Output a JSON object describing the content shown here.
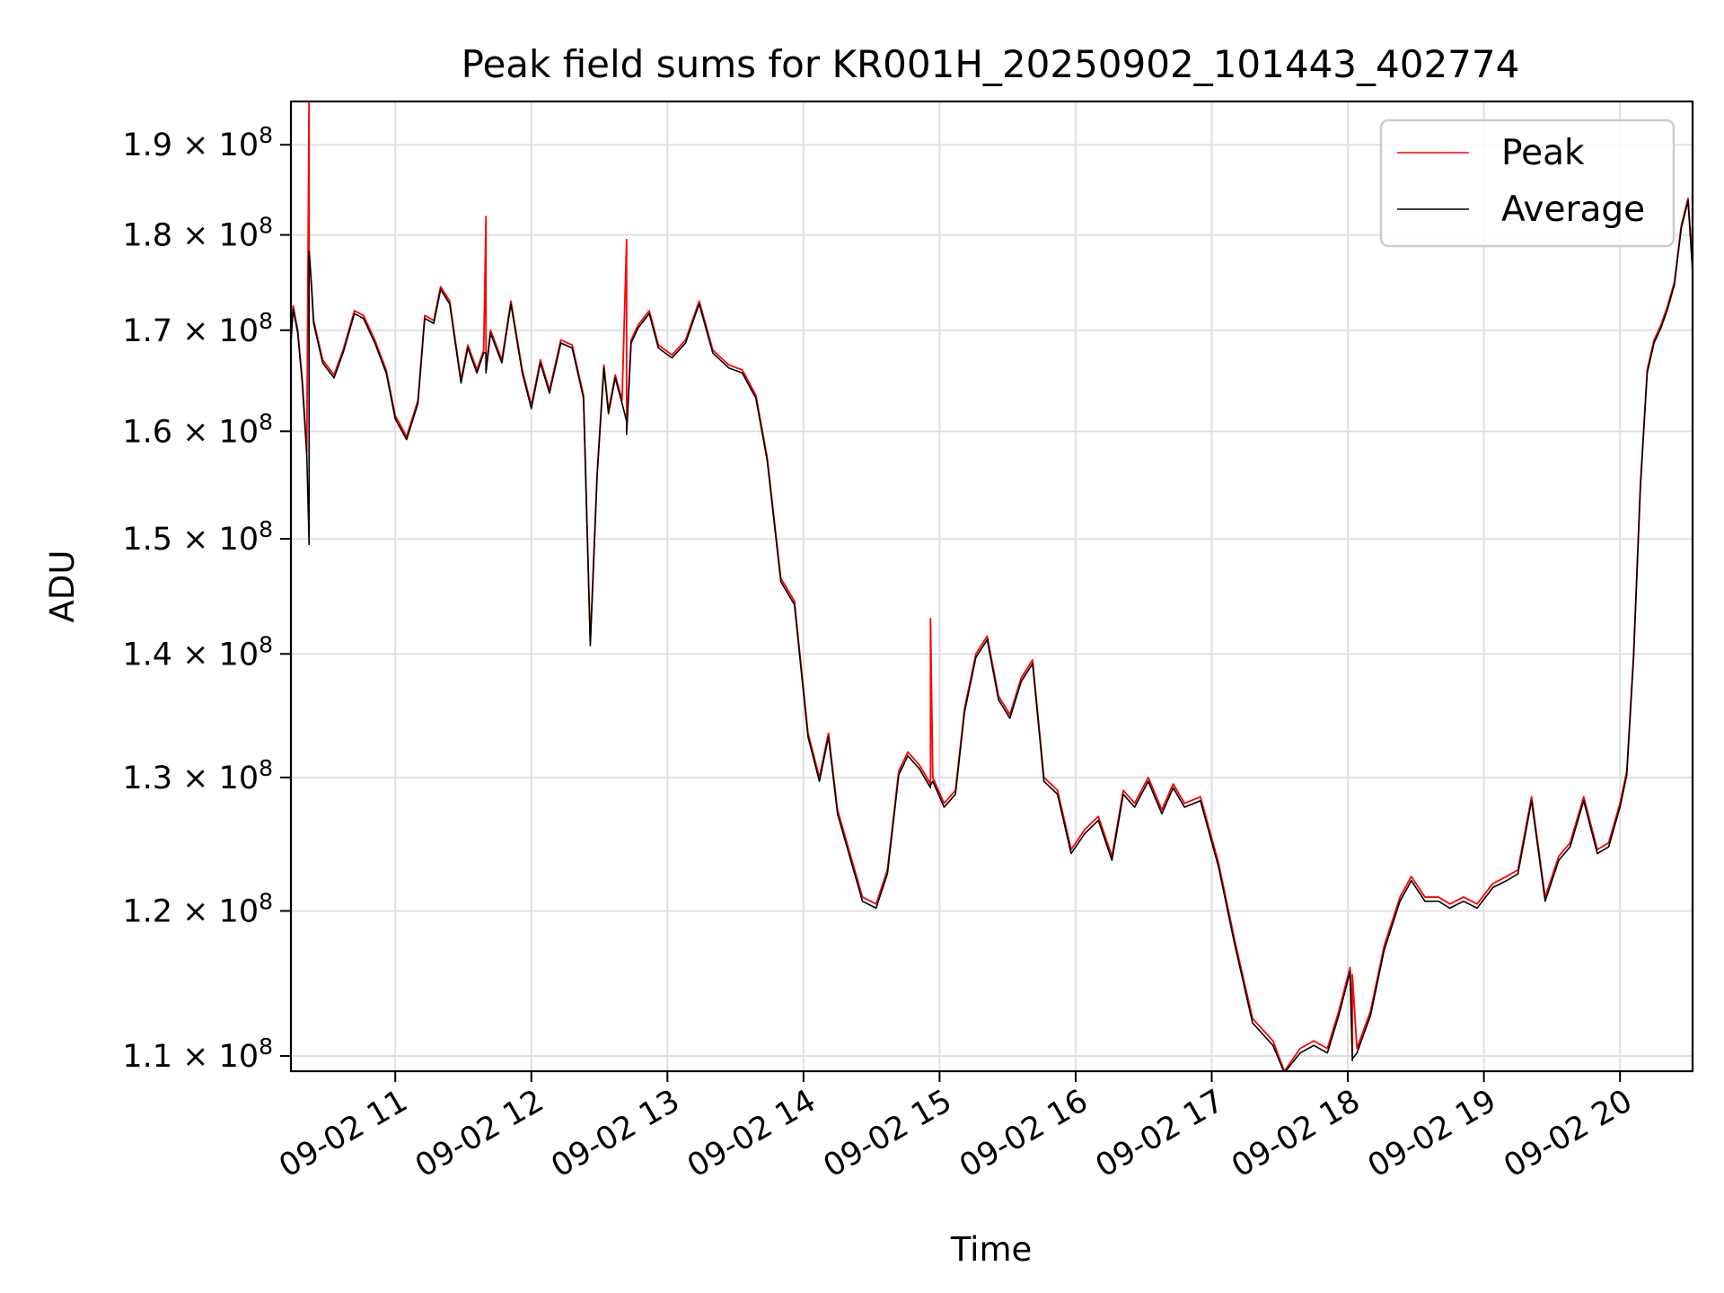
{
  "chart_data": {
    "type": "line",
    "title": "Peak field sums for KR001H_20250902_101443_402774",
    "xlabel": "Time",
    "ylabel": "ADU",
    "xlim": [
      "09-02 10:14",
      "09-02 20:32"
    ],
    "ylim": [
      109000000,
      195000000
    ],
    "y_scale": "log",
    "grid": true,
    "legend_position": "top-right",
    "x_tick_labels": [
      "09-02 11",
      "09-02 12",
      "09-02 13",
      "09-02 14",
      "09-02 15",
      "09-02 16",
      "09-02 17",
      "09-02 18",
      "09-02 19",
      "09-02 20"
    ],
    "x_tick_times": [
      "09-02 11:00",
      "09-02 12:00",
      "09-02 13:00",
      "09-02 14:00",
      "09-02 15:00",
      "09-02 16:00",
      "09-02 17:00",
      "09-02 18:00",
      "09-02 19:00",
      "09-02 20:00"
    ],
    "y_ticks": [
      {
        "value": 110000000,
        "mantissa": "1.1",
        "exp": "8"
      },
      {
        "value": 120000000,
        "mantissa": "1.2",
        "exp": "8"
      },
      {
        "value": 130000000,
        "mantissa": "1.3",
        "exp": "8"
      },
      {
        "value": 140000000,
        "mantissa": "1.4",
        "exp": "8"
      },
      {
        "value": 150000000,
        "mantissa": "1.5",
        "exp": "8"
      },
      {
        "value": 160000000,
        "mantissa": "1.6",
        "exp": "8"
      },
      {
        "value": 170000000,
        "mantissa": "1.7",
        "exp": "8"
      },
      {
        "value": 180000000,
        "mantissa": "1.8",
        "exp": "8"
      },
      {
        "value": 190000000,
        "mantissa": "1.9",
        "exp": "8"
      }
    ],
    "series": [
      {
        "name": "Peak",
        "color": "#ff0000",
        "x": [
          "09-02 10:14",
          "09-02 10:15",
          "09-02 10:17",
          "09-02 10:19",
          "09-02 10:21",
          "09-02 10:22",
          "09-02 10:22",
          "09-02 10:23",
          "09-02 10:24",
          "09-02 10:28",
          "09-02 10:33",
          "09-02 10:37",
          "09-02 10:42",
          "09-02 10:46",
          "09-02 10:51",
          "09-02 10:56",
          "09-02 11:00",
          "09-02 11:05",
          "09-02 11:10",
          "09-02 11:13",
          "09-02 11:17",
          "09-02 11:20",
          "09-02 11:24",
          "09-02 11:29",
          "09-02 11:32",
          "09-02 11:36",
          "09-02 11:39",
          "09-02 11:40",
          "09-02 11:40",
          "09-02 11:42",
          "09-02 11:47",
          "09-02 11:51",
          "09-02 11:56",
          "09-02 12:00",
          "09-02 12:04",
          "09-02 12:08",
          "09-02 12:13",
          "09-02 12:18",
          "09-02 12:23",
          "09-02 12:26",
          "09-02 12:29",
          "09-02 12:32",
          "09-02 12:34",
          "09-02 12:37",
          "09-02 12:40",
          "09-02 12:42",
          "09-02 12:42",
          "09-02 12:44",
          "09-02 12:47",
          "09-02 12:52",
          "09-02 12:56",
          "09-02 13:02",
          "09-02 13:08",
          "09-02 13:14",
          "09-02 13:20",
          "09-02 13:27",
          "09-02 13:33",
          "09-02 13:39",
          "09-02 13:44",
          "09-02 13:50",
          "09-02 13:56",
          "09-02 14:02",
          "09-02 14:07",
          "09-02 14:11",
          "09-02 14:15",
          "09-02 14:20",
          "09-02 14:26",
          "09-02 14:32",
          "09-02 14:37",
          "09-02 14:42",
          "09-02 14:46",
          "09-02 14:51",
          "09-02 14:56",
          "09-02 14:56",
          "09-02 14:57",
          "09-02 15:02",
          "09-02 15:07",
          "09-02 15:11",
          "09-02 15:16",
          "09-02 15:21",
          "09-02 15:26",
          "09-02 15:31",
          "09-02 15:36",
          "09-02 15:41",
          "09-02 15:46",
          "09-02 15:52",
          "09-02 15:58",
          "09-02 16:04",
          "09-02 16:10",
          "09-02 16:16",
          "09-02 16:21",
          "09-02 16:26",
          "09-02 16:32",
          "09-02 16:38",
          "09-02 16:43",
          "09-02 16:48",
          "09-02 16:55",
          "09-02 17:03",
          "09-02 17:10",
          "09-02 17:18",
          "09-02 17:27",
          "09-02 17:32",
          "09-02 17:39",
          "09-02 17:45",
          "09-02 17:51",
          "09-02 17:56",
          "09-02 18:01",
          "09-02 18:02",
          "09-02 18:02",
          "09-02 18:04",
          "09-02 18:10",
          "09-02 18:16",
          "09-02 18:23",
          "09-02 18:28",
          "09-02 18:34",
          "09-02 18:40",
          "09-02 18:45",
          "09-02 18:51",
          "09-02 18:57",
          "09-02 19:04",
          "09-02 19:10",
          "09-02 19:15",
          "09-02 19:21",
          "09-02 19:27",
          "09-02 19:33",
          "09-02 19:38",
          "09-02 19:44",
          "09-02 19:50",
          "09-02 19:55",
          "09-02 20:00",
          "09-02 20:03",
          "09-02 20:06",
          "09-02 20:09",
          "09-02 20:12",
          "09-02 20:15",
          "09-02 20:18",
          "09-02 20:21",
          "09-02 20:24",
          "09-02 20:27",
          "09-02 20:30",
          "09-02 20:32"
        ],
        "values": [
          169000000,
          172500000,
          170000000,
          165000000,
          158000000,
          196000000,
          178500000,
          175000000,
          171000000,
          167000000,
          165500000,
          168000000,
          172000000,
          171500000,
          169000000,
          166000000,
          161500000,
          159500000,
          163000000,
          171500000,
          171000000,
          174500000,
          173000000,
          165000000,
          168500000,
          166000000,
          168000000,
          182000000,
          166000000,
          170000000,
          167000000,
          173000000,
          166000000,
          162500000,
          167000000,
          164000000,
          169000000,
          168500000,
          163500000,
          141000000,
          156000000,
          166500000,
          162000000,
          165500000,
          163000000,
          179500000,
          160000000,
          169000000,
          170500000,
          172000000,
          168500000,
          167500000,
          169000000,
          173000000,
          168000000,
          166500000,
          166000000,
          163500000,
          157500000,
          146500000,
          144500000,
          133500000,
          130000000,
          133500000,
          127500000,
          124500000,
          121000000,
          120500000,
          123000000,
          130500000,
          132000000,
          131000000,
          129500000,
          143000000,
          130000000,
          128000000,
          129000000,
          135500000,
          140000000,
          141500000,
          136500000,
          135000000,
          138000000,
          139500000,
          130000000,
          129000000,
          124500000,
          126000000,
          127000000,
          124000000,
          129000000,
          128000000,
          130000000,
          127500000,
          129500000,
          128000000,
          128500000,
          123500000,
          118000000,
          112500000,
          111000000,
          109000000,
          110500000,
          111000000,
          110500000,
          113000000,
          116000000,
          110000000,
          115500000,
          110500000,
          113000000,
          117500000,
          121000000,
          122500000,
          121000000,
          121000000,
          120500000,
          121000000,
          120500000,
          122000000,
          122500000,
          123000000,
          128500000,
          121000000,
          124000000,
          125000000,
          128500000,
          124500000,
          125000000,
          128000000,
          130500000,
          140000000,
          155000000,
          166000000,
          169000000,
          170500000,
          172500000,
          175000000,
          181000000,
          184000000,
          177000000
        ]
      },
      {
        "name": "Average",
        "color": "#000000",
        "x": [
          "09-02 10:14",
          "09-02 10:15",
          "09-02 10:17",
          "09-02 10:19",
          "09-02 10:21",
          "09-02 10:22",
          "09-02 10:22",
          "09-02 10:23",
          "09-02 10:24",
          "09-02 10:28",
          "09-02 10:33",
          "09-02 10:37",
          "09-02 10:42",
          "09-02 10:46",
          "09-02 10:51",
          "09-02 10:56",
          "09-02 11:00",
          "09-02 11:05",
          "09-02 11:10",
          "09-02 11:13",
          "09-02 11:17",
          "09-02 11:20",
          "09-02 11:24",
          "09-02 11:29",
          "09-02 11:32",
          "09-02 11:36",
          "09-02 11:39",
          "09-02 11:40",
          "09-02 11:40",
          "09-02 11:42",
          "09-02 11:47",
          "09-02 11:51",
          "09-02 11:56",
          "09-02 12:00",
          "09-02 12:04",
          "09-02 12:08",
          "09-02 12:13",
          "09-02 12:18",
          "09-02 12:23",
          "09-02 12:26",
          "09-02 12:29",
          "09-02 12:32",
          "09-02 12:34",
          "09-02 12:37",
          "09-02 12:40",
          "09-02 12:42",
          "09-02 12:42",
          "09-02 12:44",
          "09-02 12:47",
          "09-02 12:52",
          "09-02 12:56",
          "09-02 13:02",
          "09-02 13:08",
          "09-02 13:14",
          "09-02 13:20",
          "09-02 13:27",
          "09-02 13:33",
          "09-02 13:39",
          "09-02 13:44",
          "09-02 13:50",
          "09-02 13:56",
          "09-02 14:02",
          "09-02 14:07",
          "09-02 14:11",
          "09-02 14:15",
          "09-02 14:20",
          "09-02 14:26",
          "09-02 14:32",
          "09-02 14:37",
          "09-02 14:42",
          "09-02 14:46",
          "09-02 14:51",
          "09-02 14:56",
          "09-02 14:56",
          "09-02 14:57",
          "09-02 15:02",
          "09-02 15:07",
          "09-02 15:11",
          "09-02 15:16",
          "09-02 15:21",
          "09-02 15:26",
          "09-02 15:31",
          "09-02 15:36",
          "09-02 15:41",
          "09-02 15:46",
          "09-02 15:52",
          "09-02 15:58",
          "09-02 16:04",
          "09-02 16:10",
          "09-02 16:16",
          "09-02 16:21",
          "09-02 16:26",
          "09-02 16:32",
          "09-02 16:38",
          "09-02 16:43",
          "09-02 16:48",
          "09-02 16:55",
          "09-02 17:03",
          "09-02 17:10",
          "09-02 17:18",
          "09-02 17:27",
          "09-02 17:32",
          "09-02 17:39",
          "09-02 17:45",
          "09-02 17:51",
          "09-02 17:56",
          "09-02 18:01",
          "09-02 18:02",
          "09-02 18:02",
          "09-02 18:04",
          "09-02 18:10",
          "09-02 18:16",
          "09-02 18:23",
          "09-02 18:28",
          "09-02 18:34",
          "09-02 18:40",
          "09-02 18:45",
          "09-02 18:51",
          "09-02 18:57",
          "09-02 19:04",
          "09-02 19:10",
          "09-02 19:15",
          "09-02 19:21",
          "09-02 19:27",
          "09-02 19:33",
          "09-02 19:38",
          "09-02 19:44",
          "09-02 19:50",
          "09-02 19:55",
          "09-02 20:00",
          "09-02 20:03",
          "09-02 20:06",
          "09-02 20:09",
          "09-02 20:12",
          "09-02 20:15",
          "09-02 20:18",
          "09-02 20:21",
          "09-02 20:24",
          "09-02 20:27",
          "09-02 20:30",
          "09-02 20:32"
        ],
        "values": [
          168700000,
          172200000,
          169700000,
          164700000,
          157700000,
          149500000,
          178200000,
          174700000,
          170700000,
          166700000,
          165200000,
          167700000,
          171700000,
          171200000,
          168700000,
          165700000,
          161200000,
          159200000,
          162700000,
          171200000,
          170700000,
          174200000,
          172700000,
          164700000,
          168200000,
          165700000,
          167700000,
          167700000,
          165700000,
          169700000,
          166700000,
          172700000,
          165700000,
          162200000,
          166700000,
          163700000,
          168700000,
          168200000,
          163200000,
          140700000,
          155700000,
          166200000,
          161700000,
          165200000,
          162700000,
          161000000,
          159700000,
          168700000,
          170200000,
          171700000,
          168200000,
          167200000,
          168700000,
          172700000,
          167700000,
          166200000,
          165700000,
          163200000,
          157200000,
          146200000,
          144200000,
          133200000,
          129700000,
          133200000,
          127200000,
          124200000,
          120700000,
          120200000,
          122700000,
          130200000,
          131700000,
          130700000,
          129200000,
          129400000,
          129700000,
          127700000,
          128700000,
          135200000,
          139700000,
          141200000,
          136200000,
          134700000,
          137700000,
          139200000,
          129700000,
          128700000,
          124200000,
          125700000,
          126700000,
          123700000,
          128700000,
          127700000,
          129700000,
          127200000,
          129200000,
          127700000,
          128200000,
          123200000,
          117700000,
          112200000,
          110700000,
          108900000,
          110200000,
          110700000,
          110200000,
          112700000,
          115700000,
          109700000,
          109800000,
          110200000,
          112700000,
          117200000,
          120700000,
          122200000,
          120700000,
          120700000,
          120200000,
          120700000,
          120200000,
          121700000,
          122200000,
          122700000,
          128200000,
          120700000,
          123700000,
          124700000,
          128200000,
          124200000,
          124700000,
          127700000,
          130200000,
          139700000,
          154700000,
          165700000,
          168700000,
          170200000,
          172200000,
          174700000,
          180700000,
          183700000,
          176000000
        ]
      }
    ]
  }
}
